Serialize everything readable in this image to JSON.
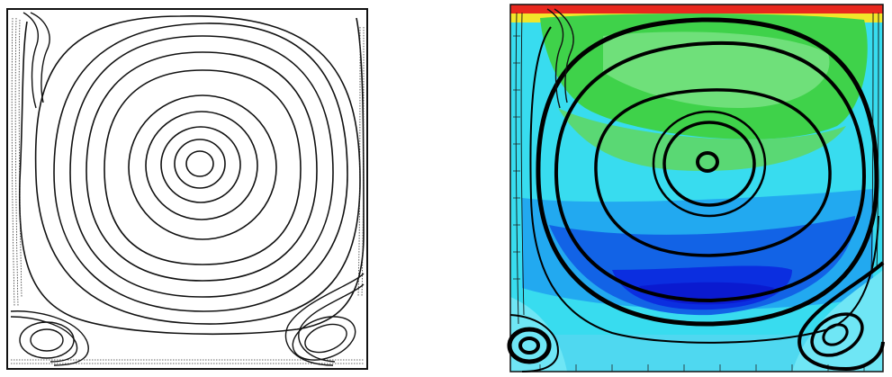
{
  "figure": {
    "panels": [
      {
        "id": "left",
        "style": "line-drawing",
        "content": "streamlines"
      },
      {
        "id": "right",
        "style": "color-contour",
        "content": "streamlines-over-color-field"
      }
    ],
    "colors": {
      "background": "#ffffff",
      "line_ink": "#111111",
      "contour_red": "#e8281e",
      "contour_yellow": "#f2e62a",
      "contour_green": "#3fd24a",
      "contour_light_green": "#6fe07a",
      "contour_cyan": "#38dcef",
      "contour_light_blue": "#22a9f0",
      "contour_blue": "#1263e6",
      "contour_deep_blue": "#0b2ee0",
      "contour_navy": "#0a1ad0"
    }
  }
}
